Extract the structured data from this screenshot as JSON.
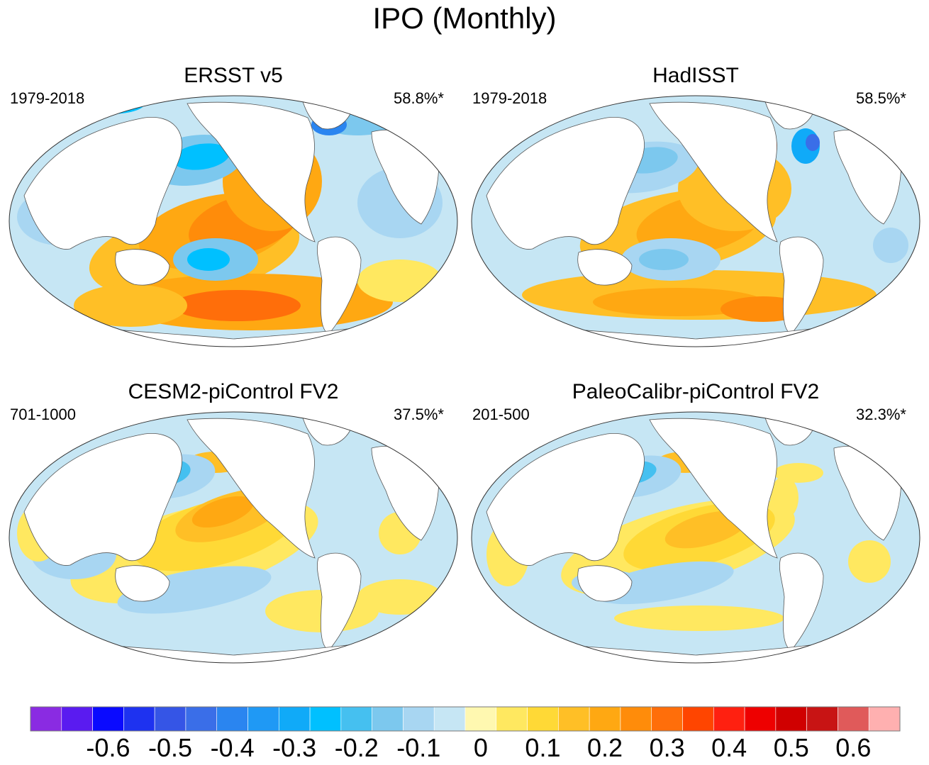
{
  "title": "IPO (Monthly)",
  "panels": [
    {
      "name": "ERSST v5",
      "period": "1979-2018",
      "variance": "58.8%*",
      "pattern": "obs1"
    },
    {
      "name": "HadISST",
      "period": "1979-2018",
      "variance": "58.5%*",
      "pattern": "obs2"
    },
    {
      "name": "CESM2-piControl FV2",
      "period": "701-1000",
      "variance": "37.5%*",
      "pattern": "model1"
    },
    {
      "name": "PaleoCalibr-piControl FV2",
      "period": "201-500",
      "variance": "32.3%*",
      "pattern": "model2"
    }
  ],
  "colorbar": {
    "colors": [
      "#8a2be2",
      "#5a1bf0",
      "#0a0aff",
      "#1e32f0",
      "#3555e6",
      "#3a6ee8",
      "#2a85f0",
      "#1f99f5",
      "#10aaf8",
      "#00c0ff",
      "#45c0f0",
      "#7cc8ee",
      "#a8d6f2",
      "#c6e6f4",
      "#fff8b0",
      "#ffe860",
      "#ffd936",
      "#ffbf26",
      "#ffa812",
      "#ff8c0a",
      "#ff6e0a",
      "#ff4500",
      "#ff2010",
      "#ee0000",
      "#d00000",
      "#c81414",
      "#e05a5a",
      "#ffb0b0"
    ],
    "tick_labels": [
      "-0.6",
      "-0.5",
      "-0.4",
      "-0.3",
      "-0.2",
      "-0.1",
      "0",
      "0.1",
      "0.2",
      "0.3",
      "0.4",
      "0.5",
      "0.6"
    ],
    "tick_positions": [
      2.5,
      4.5,
      6.5,
      8.5,
      10.5,
      12.5,
      14.5,
      16.5,
      18.5,
      20.5,
      22.5,
      24.5,
      26.5
    ]
  }
}
